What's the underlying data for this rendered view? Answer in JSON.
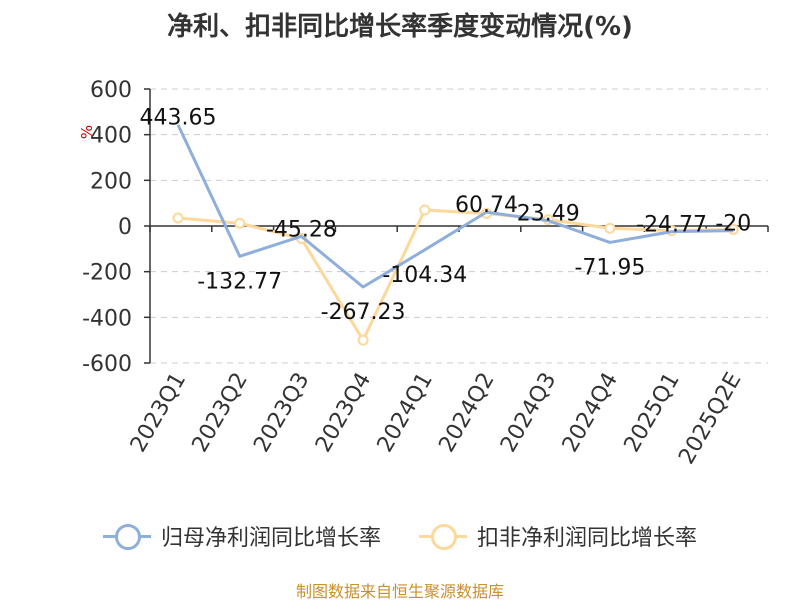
{
  "chart_data": {
    "type": "line",
    "title": "净利、扣非同比增长率季度变动情况(%)",
    "ylabel": "%",
    "categories": [
      "2023Q1",
      "2023Q2",
      "2023Q3",
      "2023Q4",
      "2024Q1",
      "2024Q2",
      "2024Q3",
      "2024Q4",
      "2025Q1",
      "2025Q2E"
    ],
    "ylim": [
      -600,
      600
    ],
    "yticks": [
      600,
      400,
      200,
      0,
      -200,
      -400,
      -600
    ],
    "grid": true,
    "legend_position": "bottom",
    "series": [
      {
        "name": "归母净利润同比增长率",
        "color": "#8eaedb",
        "values": [
          443.65,
          -132.77,
          -45.28,
          -267.23,
          -104.34,
          60.74,
          23.49,
          -71.95,
          -24.77,
          -20
        ],
        "labels": [
          "443.65",
          "-132.77",
          "-45.28",
          "-267.23",
          "-104.34",
          "60.74",
          "23.49",
          "-71.95",
          "-24.77",
          "-20"
        ]
      },
      {
        "name": "扣非净利润同比增长率",
        "color": "#fcd89a",
        "values": [
          35,
          12,
          -55,
          -500,
          70,
          55,
          28,
          -10,
          -20,
          -15
        ]
      }
    ]
  },
  "source": "制图数据来自恒生聚源数据库"
}
